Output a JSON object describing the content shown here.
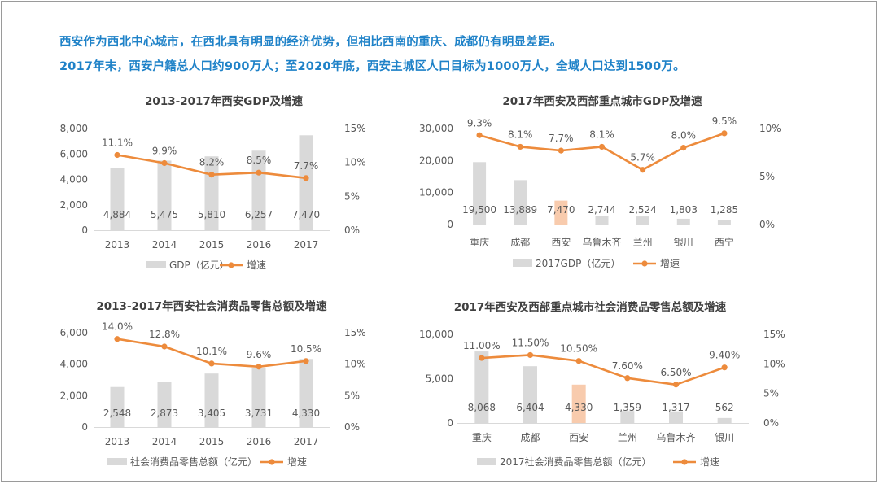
{
  "headline": {
    "line1": "西安作为西北中心城市，在西北具有明显的经济优势，但相比西南的重庆、成都仍有明显差距。",
    "line2": "2017年末，西安户籍总人口约900万人；至2020年底，西安主城区人口目标为1000万人，全域人口达到1500万。"
  },
  "colors": {
    "headline": "#1f82c8",
    "bar": "#d9d9d9",
    "bar_highlight": "#f8cbad",
    "line": "#ed8b3c",
    "axis_text": "#595959",
    "title": "#404040"
  },
  "chart_data": [
    {
      "id": "gdp_xian",
      "type": "bar",
      "title": "2013-2017年西安GDP及增速",
      "categories": [
        "2013",
        "2014",
        "2015",
        "2016",
        "2017"
      ],
      "series": [
        {
          "name": "GDP（亿元）",
          "type": "bar",
          "axis": "left",
          "values": [
            4884,
            5475,
            5810,
            6257,
            7470
          ],
          "labels": [
            "4,884",
            "5,475",
            "5,810",
            "6,257",
            "7,470"
          ]
        },
        {
          "name": "增速",
          "type": "line",
          "axis": "right",
          "values": [
            11.1,
            9.9,
            8.2,
            8.5,
            7.7
          ],
          "labels": [
            "11.1%",
            "9.9%",
            "8.2%",
            "8.5%",
            "7.7%"
          ]
        }
      ],
      "y_left": {
        "min": 0,
        "max": 8000,
        "ticks": [
          "0",
          "2,000",
          "4,000",
          "6,000",
          "8,000"
        ]
      },
      "y_right": {
        "min": 0,
        "max": 15,
        "ticks": [
          "0%",
          "5%",
          "10%",
          "15%"
        ]
      },
      "highlight_index": null
    },
    {
      "id": "gdp_west_cities",
      "type": "bar",
      "title": "2017年西安及西部重点城市GDP及增速",
      "categories": [
        "重庆",
        "成都",
        "西安",
        "乌鲁木齐",
        "兰州",
        "银川",
        "西宁"
      ],
      "series": [
        {
          "name": "2017GDP（亿元）",
          "type": "bar",
          "axis": "left",
          "values": [
            19500,
            13889,
            7470,
            2744,
            2524,
            1803,
            1285
          ],
          "labels": [
            "19,500",
            "13,889",
            "7,470",
            "2,744",
            "2,524",
            "1,803",
            "1,285"
          ]
        },
        {
          "name": "增速",
          "type": "line",
          "axis": "right",
          "values": [
            9.3,
            8.1,
            7.7,
            8.1,
            5.7,
            8.0,
            9.5
          ],
          "labels": [
            "9.3%",
            "8.1%",
            "7.7%",
            "8.1%",
            "5.7%",
            "8.0%",
            "9.5%"
          ]
        }
      ],
      "y_left": {
        "min": 0,
        "max": 30000,
        "ticks": [
          "0",
          "10,000",
          "20,000",
          "30,000"
        ]
      },
      "y_right": {
        "min": 0,
        "max": 10,
        "ticks": [
          "0%",
          "5%",
          "10%"
        ]
      },
      "highlight_index": 2
    },
    {
      "id": "retail_xian",
      "type": "bar",
      "title": "2013-2017年西安社会消费品零售总额及增速",
      "categories": [
        "2013",
        "2014",
        "2015",
        "2016",
        "2017"
      ],
      "series": [
        {
          "name": "社会消费品零售总额（亿元）",
          "type": "bar",
          "axis": "left",
          "values": [
            2548,
            2873,
            3405,
            3731,
            4330
          ],
          "labels": [
            "2,548",
            "2,873",
            "3,405",
            "3,731",
            "4,330"
          ]
        },
        {
          "name": "增速",
          "type": "line",
          "axis": "right",
          "values": [
            14.0,
            12.8,
            10.1,
            9.6,
            10.5
          ],
          "labels": [
            "14.0%",
            "12.8%",
            "10.1%",
            "9.6%",
            "10.5%"
          ]
        }
      ],
      "y_left": {
        "min": 0,
        "max": 6000,
        "ticks": [
          "0",
          "2,000",
          "4,000",
          "6,000"
        ]
      },
      "y_right": {
        "min": 0,
        "max": 15,
        "ticks": [
          "0%",
          "5%",
          "10%",
          "15%"
        ]
      },
      "highlight_index": null
    },
    {
      "id": "retail_west_cities",
      "type": "bar",
      "title": "2017年西安及西部重点城市社会消费品零售总额及增速",
      "categories": [
        "重庆",
        "成都",
        "西安",
        "兰州",
        "乌鲁木齐",
        "银川"
      ],
      "series": [
        {
          "name": "2017社会消费品零售总额（亿元）",
          "type": "bar",
          "axis": "left",
          "values": [
            8068,
            6404,
            4330,
            1359,
            1317,
            562
          ],
          "labels": [
            "8,068",
            "6,404",
            "4,330",
            "1,359",
            "1,317",
            "562"
          ]
        },
        {
          "name": "增速",
          "type": "line",
          "axis": "right",
          "values": [
            11.0,
            11.5,
            10.5,
            7.6,
            6.5,
            9.4
          ],
          "labels": [
            "11.00%",
            "11.50%",
            "10.50%",
            "7.60%",
            "6.50%",
            "9.40%"
          ]
        }
      ],
      "y_left": {
        "min": 0,
        "max": 10000,
        "ticks": [
          "0",
          "5,000",
          "10,000"
        ]
      },
      "y_right": {
        "min": 0,
        "max": 15,
        "ticks": [
          "0%",
          "5%",
          "10%",
          "15%"
        ]
      },
      "highlight_index": 2
    }
  ]
}
